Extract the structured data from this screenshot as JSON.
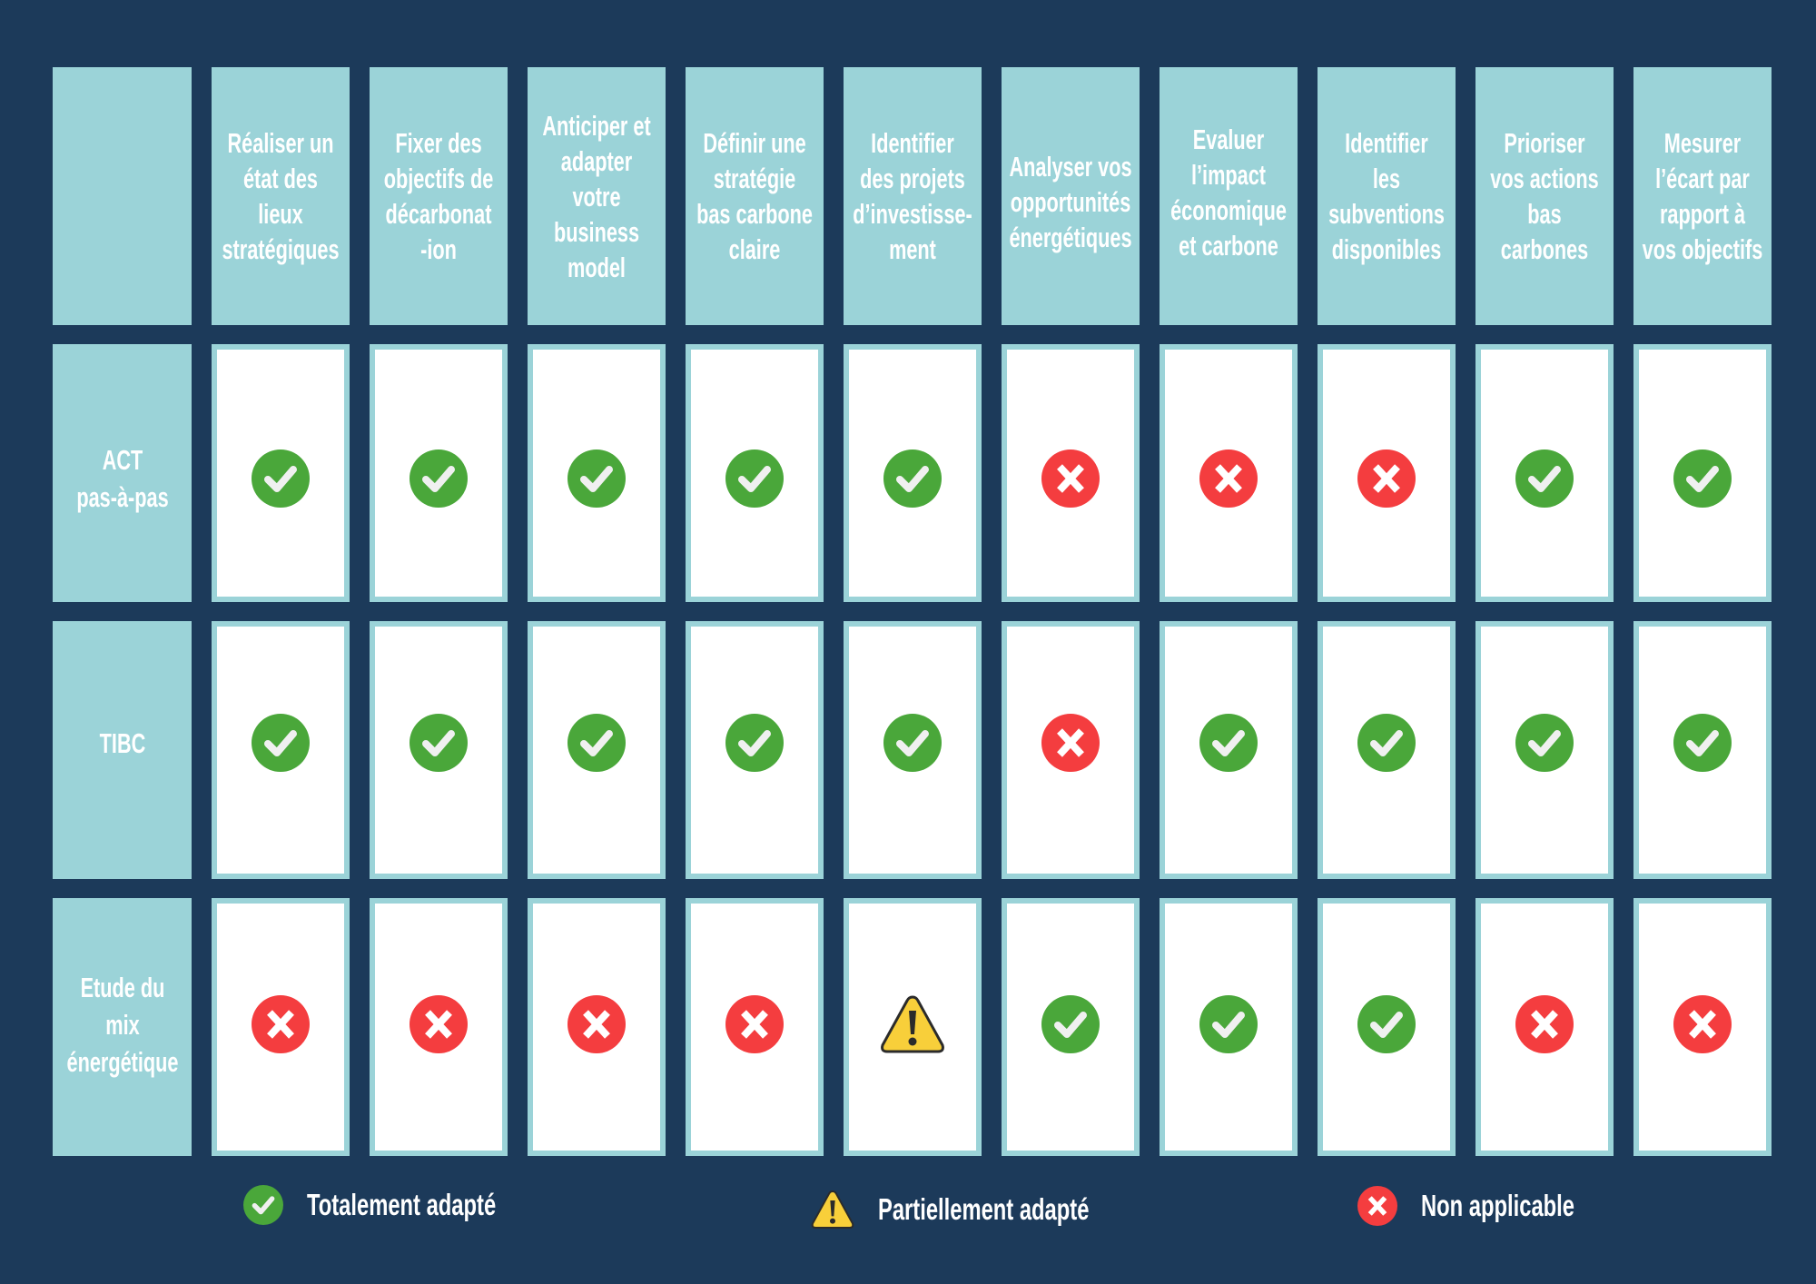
{
  "colors": {
    "background": "#1c3a5a",
    "header_fill": "#9bd3d8",
    "cell_fill": "#ffffff",
    "check_green": "#4aa73a",
    "cross_red": "#f43d3f",
    "warning_yellow": "#f8cf3a"
  },
  "columns": [
    {
      "label": "Réaliser un\nétat des\nlieux\nstratégiques"
    },
    {
      "label": "Fixer des\nobjectifs de\ndécarbonat\n-ion"
    },
    {
      "label": "Anticiper et\nadapter\nvotre\nbusiness\nmodel"
    },
    {
      "label": "Définir une\nstratégie\nbas carbone\nclaire"
    },
    {
      "label": "Identifier\ndes projets\nd’investisse-\nment"
    },
    {
      "label": "Analyser vos\nopportunités\nénergétiques"
    },
    {
      "label": "Evaluer\nl’impact\néconomique\net carbone"
    },
    {
      "label": "Identifier\nles\nsubventions\ndisponibles"
    },
    {
      "label": "Prioriser\nvos actions\nbas\ncarbones"
    },
    {
      "label": "Mesurer\nl’écart par\nrapport à\nvos objectifs"
    }
  ],
  "rows": [
    {
      "label": "ACT\npas-à-pas",
      "values": [
        "check",
        "check",
        "check",
        "check",
        "check",
        "cross",
        "cross",
        "cross",
        "check",
        "check"
      ]
    },
    {
      "label": "TIBC",
      "values": [
        "check",
        "check",
        "check",
        "check",
        "check",
        "cross",
        "check",
        "check",
        "check",
        "check"
      ]
    },
    {
      "label": "Etude du\nmix\nénergétique",
      "values": [
        "cross",
        "cross",
        "cross",
        "cross",
        "warning",
        "check",
        "check",
        "check",
        "cross",
        "cross"
      ]
    }
  ],
  "legend": [
    {
      "icon": "check",
      "label": "Totalement adapté"
    },
    {
      "icon": "warning",
      "label": "Partiellement adapté"
    },
    {
      "icon": "cross",
      "label": "Non applicable"
    }
  ],
  "chart_data": {
    "type": "table",
    "title": "",
    "columns": [
      "Réaliser un état des lieux stratégiques",
      "Fixer des objectifs de décarbonat-ion",
      "Anticiper et adapter votre business model",
      "Définir une stratégie bas carbone claire",
      "Identifier des projets d’investisse-ment",
      "Analyser vos opportunités énergétiques",
      "Evaluer l’impact économique et carbone",
      "Identifier les subventions disponibles",
      "Prioriser vos actions bas carbones",
      "Mesurer l’écart par rapport à vos objectifs"
    ],
    "rows": [
      {
        "name": "ACT pas-à-pas",
        "values": [
          "Totalement adapté",
          "Totalement adapté",
          "Totalement adapté",
          "Totalement adapté",
          "Totalement adapté",
          "Non applicable",
          "Non applicable",
          "Non applicable",
          "Totalement adapté",
          "Totalement adapté"
        ]
      },
      {
        "name": "TIBC",
        "values": [
          "Totalement adapté",
          "Totalement adapté",
          "Totalement adapté",
          "Totalement adapté",
          "Totalement adapté",
          "Non applicable",
          "Totalement adapté",
          "Totalement adapté",
          "Totalement adapté",
          "Totalement adapté"
        ]
      },
      {
        "name": "Etude du mix énergétique",
        "values": [
          "Non applicable",
          "Non applicable",
          "Non applicable",
          "Non applicable",
          "Partiellement adapté",
          "Totalement adapté",
          "Totalement adapté",
          "Totalement adapté",
          "Non applicable",
          "Non applicable"
        ]
      }
    ],
    "legend": [
      "Totalement adapté",
      "Partiellement adapté",
      "Non applicable"
    ]
  }
}
